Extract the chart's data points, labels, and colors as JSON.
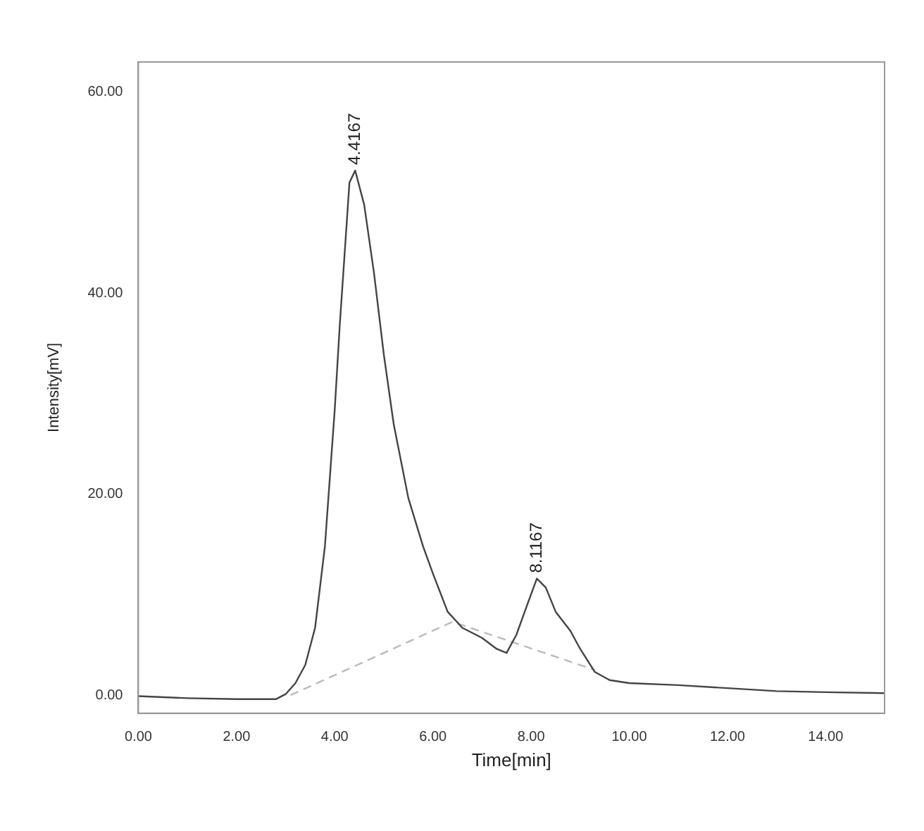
{
  "chart_data": {
    "type": "line",
    "xlabel": "Time[min]",
    "ylabel": "Intensity[mV]",
    "xlim": [
      0,
      15.2
    ],
    "ylim": [
      -1.8,
      63
    ],
    "xticks": [
      {
        "value": 0,
        "label": "0.00"
      },
      {
        "value": 2,
        "label": "2.00"
      },
      {
        "value": 4,
        "label": "4.00"
      },
      {
        "value": 6,
        "label": "6.00"
      },
      {
        "value": 8,
        "label": "8.00"
      },
      {
        "value": 10,
        "label": "10.00"
      },
      {
        "value": 12,
        "label": "12.00"
      },
      {
        "value": 14,
        "label": "14.00"
      }
    ],
    "yticks": [
      {
        "value": 0,
        "label": "0.00"
      },
      {
        "value": 20,
        "label": "20.00"
      },
      {
        "value": 40,
        "label": "40.00"
      },
      {
        "value": 60,
        "label": "60.00"
      }
    ],
    "grid": false,
    "legend": false,
    "marker": "none",
    "series": [
      {
        "color": "#444444",
        "line_style": "solid",
        "x": [
          0,
          1,
          2,
          2.8,
          3,
          3.2,
          3.4,
          3.6,
          3.8,
          4,
          4.1,
          4.3,
          4.4167,
          4.6,
          4.8,
          5,
          5.2,
          5.5,
          5.8,
          6,
          6.3,
          6.6,
          7,
          7.3,
          7.5,
          7.7,
          7.9,
          8.1167,
          8.3,
          8.5,
          8.8,
          9,
          9.3,
          9.6,
          10,
          11,
          12,
          13,
          14,
          15.2
        ],
        "values": [
          -0.1,
          -0.3,
          -0.4,
          -0.4,
          0.1,
          1.2,
          3,
          6.7,
          14.8,
          28.4,
          36.6,
          51,
          52.2,
          48.8,
          42,
          33.9,
          27,
          19.6,
          14.8,
          12.1,
          8.3,
          6.7,
          5.7,
          4.6,
          4.2,
          6,
          8.7,
          11.6,
          10.7,
          8.3,
          6.4,
          4.6,
          2.3,
          1.5,
          1.2,
          1,
          0.7,
          0.4,
          0.3,
          0.2
        ]
      },
      {
        "color": "#bbbbbb",
        "line_style": "dashed",
        "x": [
          3.1,
          6.4,
          9.3
        ],
        "values": [
          0,
          7.3,
          2.5
        ]
      }
    ],
    "annotations": [
      {
        "text": "4.4167",
        "x": 4.4167,
        "y": 52.2
      },
      {
        "text": "8.1167",
        "x": 8.1167,
        "y": 11.6
      }
    ]
  }
}
